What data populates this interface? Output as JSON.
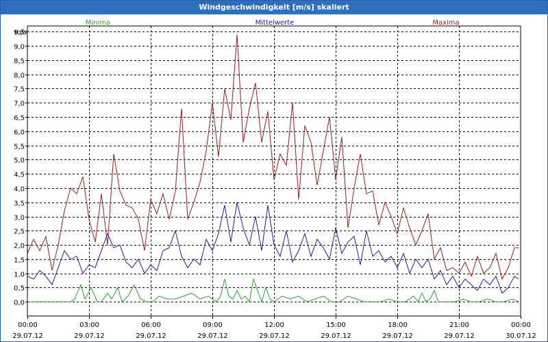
{
  "window": {
    "title": "Windgeschwindigkeit [m/s] skaliert"
  },
  "colors": {
    "titlebar": "#2f6fbf",
    "minima": "#1eaa1e",
    "mittel": "#1a1aa8",
    "maxima": "#a01818",
    "grid": "#000000"
  },
  "chart_data": {
    "type": "line",
    "title": "Windgeschwindigkeit [m/s] skaliert",
    "ylabel": "m/s",
    "ylim": [
      -0.5,
      9.7
    ],
    "yticks": [
      0.0,
      0.5,
      1.0,
      1.5,
      2.0,
      2.5,
      3.0,
      3.5,
      4.0,
      4.5,
      5.0,
      5.5,
      6.0,
      6.5,
      7.0,
      7.5,
      8.0,
      8.5,
      9.0,
      9.5
    ],
    "ytick_labels": [
      "0,0",
      "0,5",
      "1,0",
      "1,5",
      "2,0",
      "2,5",
      "3,0",
      "3,5",
      "4,0",
      "4,5",
      "5,0",
      "5,5",
      "6,0",
      "6,5",
      "7,0",
      "7,5",
      "8,0",
      "8,5",
      "9,0",
      "9,5"
    ],
    "xlim": [
      0,
      24
    ],
    "xticks": [
      0,
      3,
      6,
      9,
      12,
      15,
      18,
      21,
      24
    ],
    "xtick_time": [
      "00:00",
      "03:00",
      "06:00",
      "09:00",
      "12:00",
      "15:00",
      "18:00",
      "21:00",
      "00:00"
    ],
    "xtick_date": [
      "29.07.12",
      "29.07.12",
      "29.07.12",
      "29.07.12",
      "29.07.12",
      "29.07.12",
      "29.07.12",
      "29.07.12",
      "30.07.12"
    ],
    "grid": true,
    "legend": "top",
    "series": [
      {
        "name": "Minima",
        "x": [
          0,
          0.5,
          1,
          1.5,
          1.8,
          2.1,
          2.3,
          2.6,
          2.8,
          3.1,
          3.4,
          3.6,
          3.9,
          4.1,
          4.4,
          4.6,
          4.9,
          5.2,
          5.5,
          5.8,
          6.1,
          6.4,
          6.8,
          7.2,
          7.6,
          8,
          8.4,
          8.8,
          9.2,
          9.4,
          9.6,
          9.8,
          10,
          10.2,
          10.4,
          10.6,
          10.8,
          11,
          11.2,
          11.4,
          11.6,
          11.8,
          12,
          12.4,
          12.8,
          13.2,
          13.6,
          14,
          14.4,
          14.8,
          15.2,
          15.6,
          16,
          16.4,
          16.8,
          17.2,
          17.6,
          18,
          18.4,
          18.8,
          19,
          19.2,
          19.4,
          19.6,
          19.8,
          20,
          20.4,
          20.8,
          21.2,
          21.6,
          22,
          22.4,
          22.8,
          23.2,
          23.6,
          23.9
        ],
        "values": [
          0,
          0,
          0,
          0,
          0,
          0,
          0.1,
          0.6,
          0.1,
          0.5,
          0,
          0,
          0.3,
          0.1,
          0.5,
          0,
          0.2,
          0.6,
          0.1,
          0,
          0,
          0.2,
          0.1,
          0.1,
          0.2,
          0.3,
          0.1,
          0.2,
          0,
          0.2,
          0.8,
          0.2,
          0.1,
          0.4,
          0.1,
          0.2,
          0,
          0.8,
          0.4,
          0,
          0.5,
          0.1,
          0,
          0.2,
          0.1,
          0.2,
          0,
          0.1,
          0.2,
          0,
          0,
          0.2,
          0.1,
          0,
          0,
          0,
          0.1,
          0,
          0,
          0.2,
          0,
          0.3,
          0,
          0.1,
          0.4,
          0,
          0,
          0,
          0.1,
          0,
          0,
          0.1,
          0,
          0,
          0.1,
          0
        ]
      },
      {
        "name": "Mittelwerte",
        "x": [
          0,
          0.3,
          0.6,
          0.9,
          1.2,
          1.5,
          1.8,
          2.1,
          2.4,
          2.7,
          3.0,
          3.3,
          3.6,
          3.9,
          4.2,
          4.5,
          4.8,
          5.1,
          5.4,
          5.7,
          6.0,
          6.3,
          6.6,
          6.9,
          7.2,
          7.5,
          7.8,
          8.1,
          8.4,
          8.7,
          9.0,
          9.3,
          9.6,
          9.9,
          10.2,
          10.5,
          10.8,
          11.1,
          11.4,
          11.7,
          12.0,
          12.3,
          12.6,
          12.9,
          13.2,
          13.5,
          13.8,
          14.1,
          14.4,
          14.7,
          15.0,
          15.3,
          15.6,
          15.9,
          16.2,
          16.5,
          16.8,
          17.1,
          17.4,
          17.7,
          18.0,
          18.3,
          18.6,
          18.9,
          19.2,
          19.5,
          19.8,
          20.1,
          20.4,
          20.7,
          21.0,
          21.3,
          21.6,
          21.9,
          22.2,
          22.5,
          22.8,
          23.1,
          23.4,
          23.7,
          23.9
        ],
        "values": [
          0.9,
          0.8,
          1.1,
          0.9,
          0.6,
          1.2,
          1.8,
          1.5,
          1.6,
          1.0,
          1.3,
          1.2,
          1.8,
          2.4,
          1.9,
          2.0,
          1.4,
          1.2,
          1.5,
          1.0,
          1.3,
          1.1,
          1.8,
          1.9,
          2.5,
          1.6,
          1.2,
          1.5,
          1.3,
          2.2,
          1.8,
          2.4,
          3.4,
          2.1,
          3.5,
          2.6,
          2.0,
          3.0,
          1.8,
          3.4,
          2.0,
          1.6,
          2.5,
          1.4,
          1.8,
          2.4,
          1.6,
          2.2,
          1.9,
          1.5,
          2.6,
          1.7,
          2.1,
          2.3,
          1.3,
          2.5,
          1.6,
          1.8,
          1.4,
          1.6,
          1.2,
          1.7,
          1.0,
          1.5,
          1.2,
          1.5,
          0.8,
          1.1,
          0.6,
          0.9,
          0.5,
          0.8,
          0.6,
          0.4,
          0.8,
          0.6,
          0.9,
          0.3,
          0.5,
          0.9,
          0.8
        ]
      },
      {
        "name": "Maxima",
        "x": [
          0,
          0.3,
          0.6,
          0.9,
          1.2,
          1.5,
          1.8,
          2.1,
          2.4,
          2.7,
          3.0,
          3.3,
          3.6,
          3.9,
          4.2,
          4.5,
          4.8,
          5.1,
          5.4,
          5.7,
          6.0,
          6.3,
          6.6,
          6.9,
          7.2,
          7.5,
          7.8,
          8.1,
          8.4,
          8.7,
          9.0,
          9.3,
          9.6,
          9.9,
          10.2,
          10.5,
          10.8,
          11.1,
          11.4,
          11.7,
          12.0,
          12.3,
          12.6,
          12.9,
          13.2,
          13.5,
          13.8,
          14.1,
          14.4,
          14.7,
          15.0,
          15.3,
          15.6,
          15.9,
          16.2,
          16.5,
          16.8,
          17.1,
          17.4,
          17.7,
          18.0,
          18.3,
          18.6,
          18.9,
          19.2,
          19.5,
          19.8,
          20.1,
          20.4,
          20.7,
          21.0,
          21.3,
          21.6,
          21.9,
          22.2,
          22.5,
          22.8,
          23.1,
          23.4,
          23.7,
          23.9
        ],
        "values": [
          1.7,
          2.2,
          1.8,
          2.3,
          1.1,
          2.0,
          3.2,
          4.0,
          3.8,
          4.4,
          2.9,
          2.1,
          3.8,
          2.0,
          5.2,
          3.9,
          3.4,
          3.3,
          2.9,
          1.8,
          3.6,
          3.1,
          3.8,
          2.9,
          3.9,
          6.8,
          2.9,
          3.5,
          4.2,
          5.3,
          7.0,
          5.1,
          7.5,
          6.4,
          9.4,
          5.6,
          6.8,
          7.7,
          5.6,
          6.7,
          4.3,
          5.2,
          4.8,
          7.0,
          3.6,
          6.2,
          5.6,
          4.1,
          5.3,
          6.5,
          4.3,
          5.8,
          2.6,
          4.0,
          5.2,
          3.8,
          3.9,
          2.7,
          3.5,
          3.0,
          2.4,
          3.3,
          2.6,
          2.0,
          2.5,
          3.1,
          1.5,
          1.9,
          1.1,
          1.2,
          1.0,
          1.4,
          0.9,
          1.6,
          1.0,
          1.2,
          1.7,
          0.8,
          1.2,
          1.9,
          1.9
        ]
      }
    ]
  }
}
